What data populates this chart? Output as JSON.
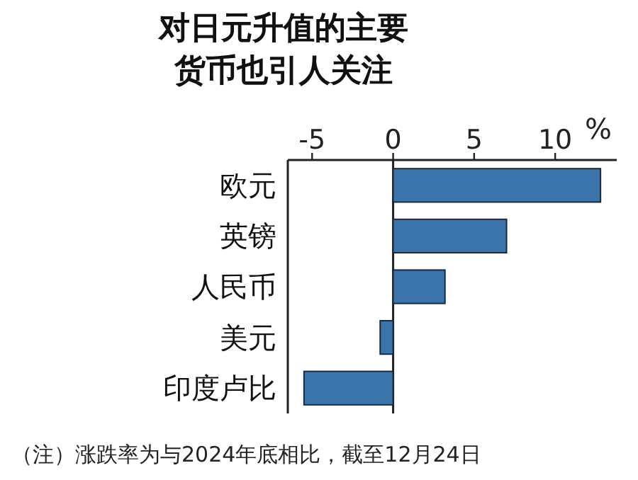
{
  "chart_data": {
    "type": "bar",
    "orientation": "horizontal",
    "title": "对日元升值的主要货币也引人关注",
    "xlabel": "%",
    "categories": [
      "欧元",
      "英镑",
      "人民币",
      "美元",
      "印度卢比"
    ],
    "values": [
      12.8,
      7.0,
      3.2,
      -0.8,
      -5.5
    ],
    "color": "#3b74aa",
    "xlim": [
      -6.5,
      13.8
    ],
    "xticks": [
      -5,
      0,
      5,
      10
    ],
    "annotations": [
      "（注）涨跌率为与2024年底相比，截至12月24日"
    ]
  }
}
